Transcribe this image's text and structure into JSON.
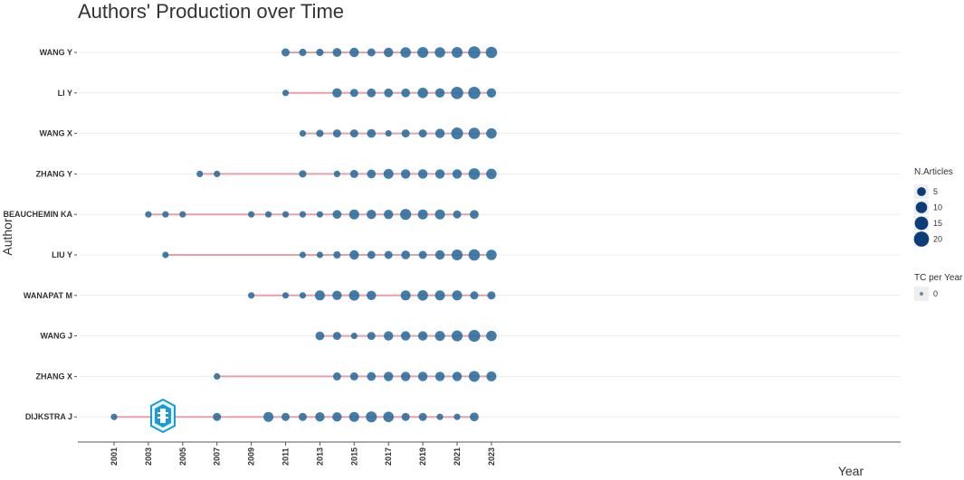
{
  "chart_data": {
    "type": "scatter",
    "title": "Authors' Production over Time",
    "xlabel": "Year",
    "ylabel": "Author",
    "xlim": [
      1999,
      2024
    ],
    "x_ticks": [
      2001,
      2003,
      2005,
      2007,
      2009,
      2011,
      2013,
      2015,
      2017,
      2019,
      2021,
      2023
    ],
    "grid": true,
    "legend_position": "right",
    "colors": {
      "point": "#2e6e9e",
      "segment": "#e8a0a6",
      "gridline": "#ececec"
    },
    "legend": {
      "size_title": "N.Articles",
      "size_items": [
        5,
        10,
        15,
        20
      ],
      "color_title": "TC per Year",
      "color_items": [
        0
      ]
    },
    "authors": [
      {
        "name": "WANG Y",
        "points": [
          [
            2011,
            4
          ],
          [
            2012,
            3
          ],
          [
            2013,
            3
          ],
          [
            2014,
            5
          ],
          [
            2015,
            6
          ],
          [
            2016,
            4
          ],
          [
            2017,
            6
          ],
          [
            2018,
            8
          ],
          [
            2019,
            9
          ],
          [
            2020,
            8
          ],
          [
            2021,
            9
          ],
          [
            2022,
            12
          ],
          [
            2023,
            10
          ]
        ]
      },
      {
        "name": "LI Y",
        "points": [
          [
            2011,
            2
          ],
          [
            2014,
            6
          ],
          [
            2015,
            4
          ],
          [
            2016,
            5
          ],
          [
            2017,
            5
          ],
          [
            2018,
            5
          ],
          [
            2019,
            8
          ],
          [
            2020,
            6
          ],
          [
            2021,
            12
          ],
          [
            2022,
            12
          ],
          [
            2023,
            6
          ]
        ]
      },
      {
        "name": "WANG X",
        "points": [
          [
            2012,
            2
          ],
          [
            2013,
            3
          ],
          [
            2014,
            4
          ],
          [
            2015,
            4
          ],
          [
            2016,
            5
          ],
          [
            2017,
            2
          ],
          [
            2018,
            4
          ],
          [
            2019,
            4
          ],
          [
            2020,
            6
          ],
          [
            2021,
            11
          ],
          [
            2022,
            10
          ],
          [
            2023,
            8
          ]
        ]
      },
      {
        "name": "ZHANG Y",
        "points": [
          [
            2006,
            2
          ],
          [
            2007,
            2
          ],
          [
            2012,
            3
          ],
          [
            2014,
            2
          ],
          [
            2015,
            4
          ],
          [
            2016,
            5
          ],
          [
            2017,
            7
          ],
          [
            2018,
            6
          ],
          [
            2019,
            6
          ],
          [
            2020,
            6
          ],
          [
            2021,
            6
          ],
          [
            2022,
            10
          ],
          [
            2023,
            8
          ]
        ]
      },
      {
        "name": "BEAUCHEMIN KA",
        "points": [
          [
            2003,
            2
          ],
          [
            2004,
            2
          ],
          [
            2005,
            2
          ],
          [
            2009,
            2
          ],
          [
            2010,
            2
          ],
          [
            2011,
            2
          ],
          [
            2012,
            2
          ],
          [
            2013,
            2
          ],
          [
            2014,
            5
          ],
          [
            2015,
            7
          ],
          [
            2016,
            6
          ],
          [
            2017,
            6
          ],
          [
            2018,
            9
          ],
          [
            2019,
            7
          ],
          [
            2020,
            7
          ],
          [
            2021,
            4
          ],
          [
            2022,
            5
          ]
        ]
      },
      {
        "name": "LIU Y",
        "points": [
          [
            2004,
            2
          ],
          [
            2012,
            2
          ],
          [
            2013,
            2
          ],
          [
            2014,
            3
          ],
          [
            2015,
            6
          ],
          [
            2016,
            4
          ],
          [
            2017,
            4
          ],
          [
            2018,
            5
          ],
          [
            2019,
            4
          ],
          [
            2020,
            6
          ],
          [
            2021,
            9
          ],
          [
            2022,
            10
          ],
          [
            2023,
            8
          ]
        ]
      },
      {
        "name": "WANAPAT M",
        "points": [
          [
            2009,
            2
          ],
          [
            2011,
            2
          ],
          [
            2012,
            2
          ],
          [
            2013,
            7
          ],
          [
            2014,
            6
          ],
          [
            2015,
            8
          ],
          [
            2016,
            6
          ],
          [
            2018,
            7
          ],
          [
            2019,
            8
          ],
          [
            2020,
            7
          ],
          [
            2021,
            7
          ],
          [
            2022,
            4
          ],
          [
            2023,
            4
          ]
        ]
      },
      {
        "name": "WANG J",
        "points": [
          [
            2013,
            5
          ],
          [
            2014,
            4
          ],
          [
            2015,
            2
          ],
          [
            2016,
            4
          ],
          [
            2017,
            6
          ],
          [
            2018,
            6
          ],
          [
            2019,
            6
          ],
          [
            2020,
            7
          ],
          [
            2021,
            9
          ],
          [
            2022,
            11
          ],
          [
            2023,
            8
          ]
        ]
      },
      {
        "name": "ZHANG X",
        "points": [
          [
            2007,
            2
          ],
          [
            2014,
            4
          ],
          [
            2015,
            4
          ],
          [
            2016,
            5
          ],
          [
            2017,
            6
          ],
          [
            2018,
            6
          ],
          [
            2019,
            6
          ],
          [
            2020,
            6
          ],
          [
            2021,
            6
          ],
          [
            2022,
            9
          ],
          [
            2023,
            7
          ]
        ]
      },
      {
        "name": "DIJKSTRA J",
        "points": [
          [
            2001,
            2
          ],
          [
            2007,
            4
          ],
          [
            2010,
            7
          ],
          [
            2011,
            4
          ],
          [
            2012,
            4
          ],
          [
            2013,
            6
          ],
          [
            2014,
            6
          ],
          [
            2015,
            7
          ],
          [
            2016,
            9
          ],
          [
            2017,
            8
          ],
          [
            2018,
            4
          ],
          [
            2019,
            4
          ],
          [
            2020,
            2
          ],
          [
            2021,
            2
          ],
          [
            2022,
            5
          ]
        ]
      }
    ]
  }
}
